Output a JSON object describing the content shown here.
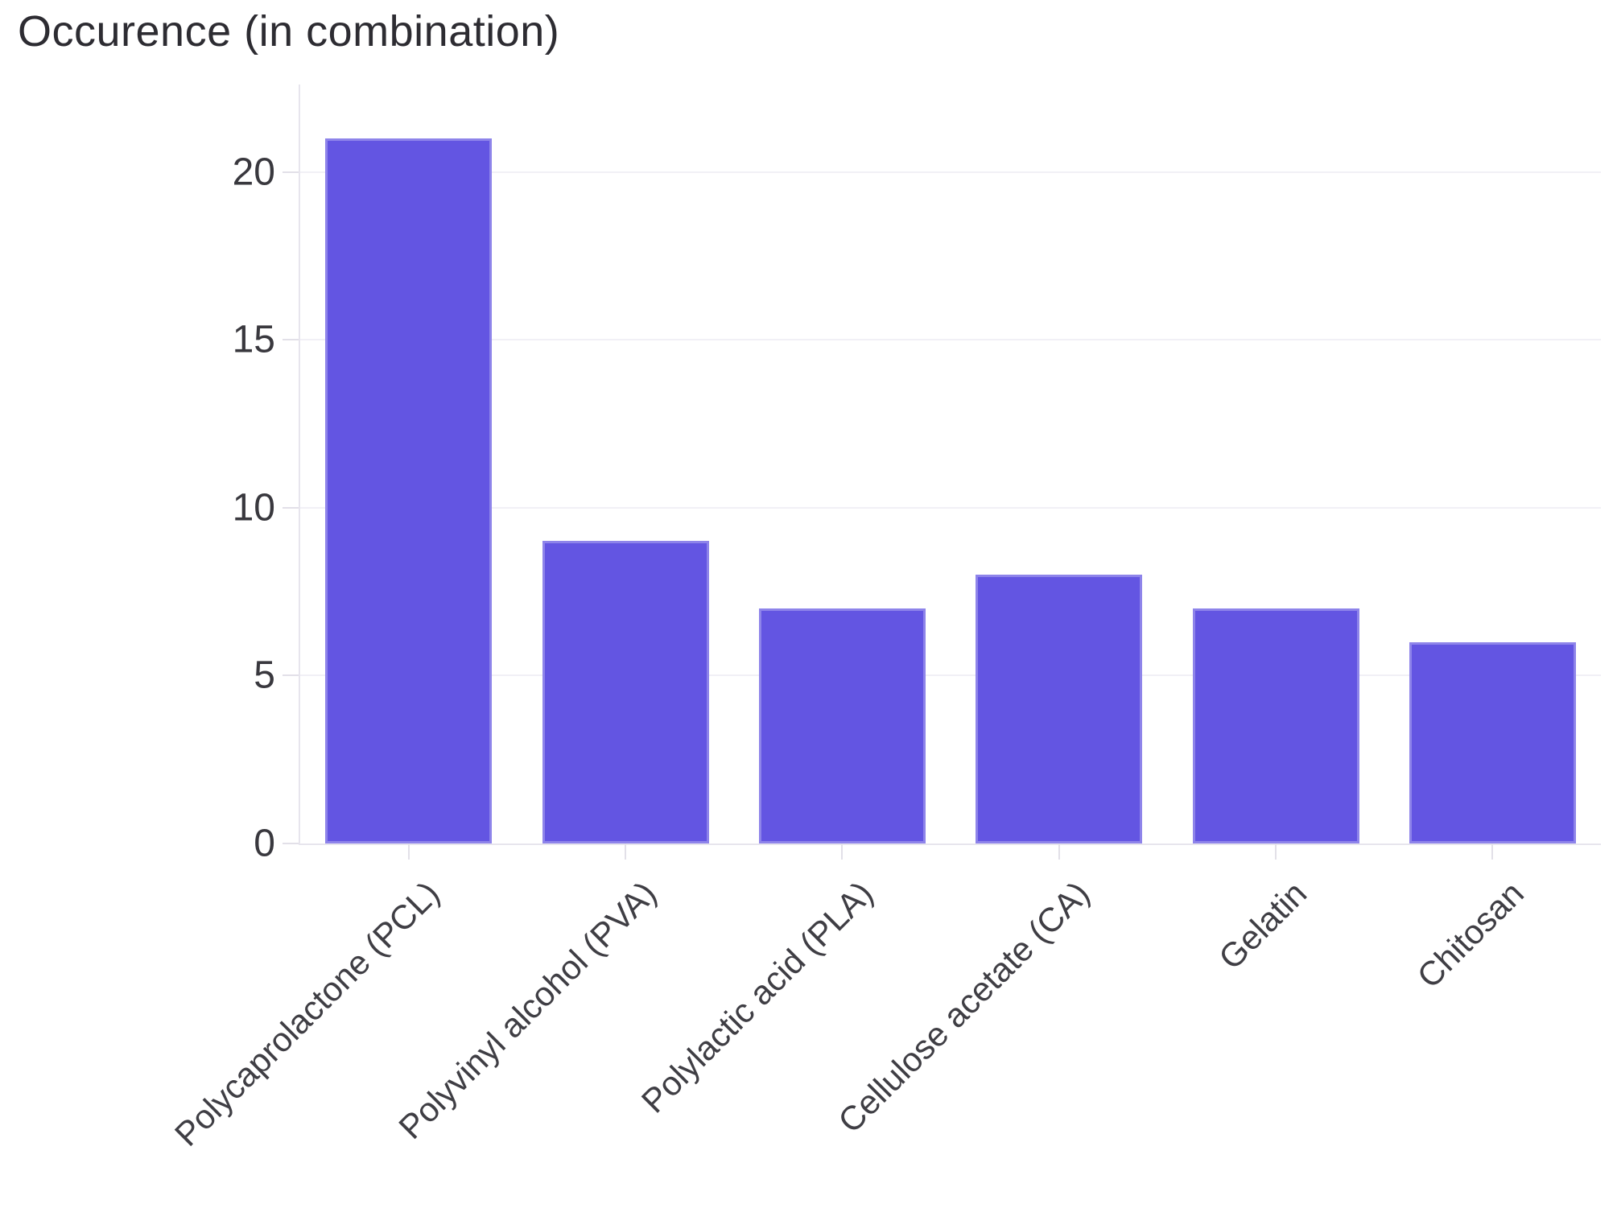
{
  "header": {
    "title": "Occurence (in combination)"
  },
  "chart_data": {
    "type": "bar",
    "title": "Occurence (in combination)",
    "categories": [
      "Polycaprolactone (PCL)",
      "Polyvinyl alcohol (PVA)",
      "Polylactic acid (PLA)",
      "Cellulose acetate (CA)",
      "Gelatin",
      "Chitosan"
    ],
    "values": [
      21,
      9,
      7,
      8,
      7,
      6
    ],
    "xlabel": "",
    "ylabel": "",
    "ylim": [
      0,
      22.6
    ],
    "yticks": [
      0,
      5,
      10,
      15,
      20
    ],
    "grid": true,
    "legend": "none",
    "bar_color": "#6355E2",
    "bar_edge_color": "#8f87ea",
    "gridline_color": "#f1f0f6",
    "axis_color": "#e7e5ed",
    "tick_label_color": "#39383e",
    "category_label_color": "#3f3e44",
    "title_color": "#2d2c32"
  }
}
